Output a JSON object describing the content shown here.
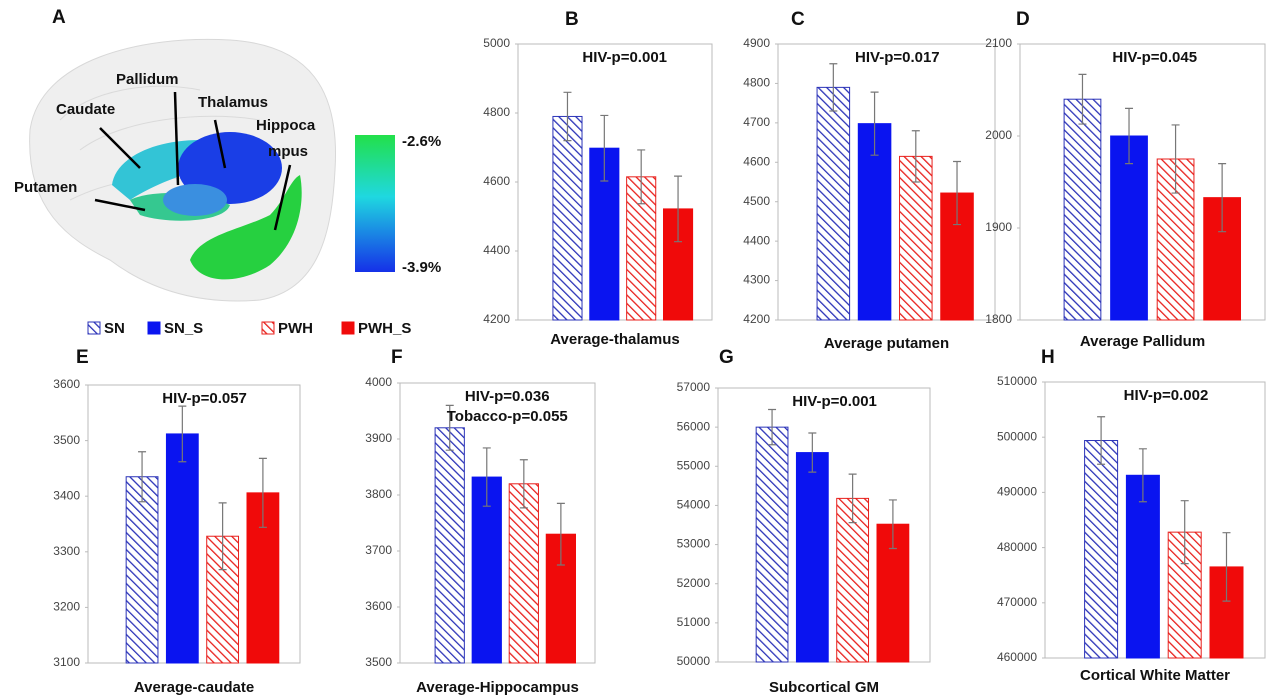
{
  "panel_a": {
    "letter": "A",
    "labels": [
      "Pallidum",
      "Caudate",
      "Thalamus",
      "Hippoca",
      "mpus",
      "Putamen"
    ],
    "colorbar": [
      "-2.6%",
      "-3.9%"
    ]
  },
  "legend": [
    {
      "name": "SN",
      "color": "#2b33b8",
      "hatch": true
    },
    {
      "name": "SN_S",
      "color": "#0a14f0",
      "hatch": false
    },
    {
      "name": "PWH",
      "color": "#e8201c",
      "hatch": true
    },
    {
      "name": "PWH_S",
      "color": "#f00a0a",
      "hatch": false
    }
  ],
  "chart_data": [
    {
      "type": "bar",
      "panel": "B",
      "xlabel": "Average-thalamus",
      "annotations": [
        "HIV-p=0.001"
      ],
      "ylim": [
        4200,
        5000
      ],
      "yticks": [
        4200,
        4400,
        4600,
        4800,
        5000
      ],
      "grid": false,
      "values": [
        4790,
        4698,
        4615,
        4522
      ],
      "errors": [
        70,
        95,
        78,
        95
      ]
    },
    {
      "type": "bar",
      "panel": "C",
      "xlabel": "Average putamen",
      "annotations": [
        "HIV-p=0.017"
      ],
      "ylim": [
        4200,
        4900
      ],
      "yticks": [
        4200,
        4300,
        4400,
        4500,
        4600,
        4700,
        4800,
        4900
      ],
      "grid": false,
      "values": [
        4790,
        4698,
        4615,
        4522
      ],
      "errors": [
        60,
        80,
        65,
        80
      ]
    },
    {
      "type": "bar",
      "panel": "D",
      "xlabel": "Average Pallidum",
      "annotations": [
        "HIV-p=0.045"
      ],
      "ylim": [
        1800,
        2100
      ],
      "yticks": [
        1800,
        1900,
        2000,
        2100
      ],
      "grid": false,
      "values": [
        2040,
        2000,
        1975,
        1933
      ],
      "errors": [
        27,
        30,
        37,
        37
      ]
    },
    {
      "type": "bar",
      "panel": "E",
      "xlabel": "Average-caudate",
      "annotations": [
        "HIV-p=0.057"
      ],
      "ylim": [
        3100,
        3600
      ],
      "yticks": [
        3100,
        3200,
        3300,
        3400,
        3500,
        3600
      ],
      "grid": false,
      "values": [
        3435,
        3512,
        3328,
        3406
      ],
      "errors": [
        45,
        50,
        60,
        62
      ]
    },
    {
      "type": "bar",
      "panel": "F",
      "xlabel": "Average-Hippocampus",
      "annotations": [
        "HIV-p=0.036",
        "Tobacco-p=0.055"
      ],
      "ylim": [
        3500,
        4000
      ],
      "yticks": [
        3500,
        3600,
        3700,
        3800,
        3900,
        4000
      ],
      "grid": false,
      "values": [
        3920,
        3832,
        3820,
        3730
      ],
      "errors": [
        40,
        52,
        43,
        55
      ]
    },
    {
      "type": "bar",
      "panel": "G",
      "xlabel": "Subcortical GM",
      "annotations": [
        "HIV-p=0.001"
      ],
      "ylim": [
        50000,
        57000
      ],
      "yticks": [
        50000,
        51000,
        52000,
        53000,
        54000,
        55000,
        56000,
        57000
      ],
      "grid": false,
      "values": [
        56000,
        55350,
        54180,
        53520
      ],
      "errors": [
        450,
        500,
        620,
        620
      ]
    },
    {
      "type": "bar",
      "panel": "H",
      "xlabel": "Cortical White Matter",
      "annotations": [
        "HIV-p=0.002"
      ],
      "ylim": [
        460000,
        510000
      ],
      "yticks": [
        460000,
        470000,
        480000,
        490000,
        500000,
        510000
      ],
      "grid": false,
      "values": [
        499400,
        493100,
        482800,
        476500
      ],
      "errors": [
        4300,
        4800,
        5700,
        6200
      ]
    }
  ]
}
